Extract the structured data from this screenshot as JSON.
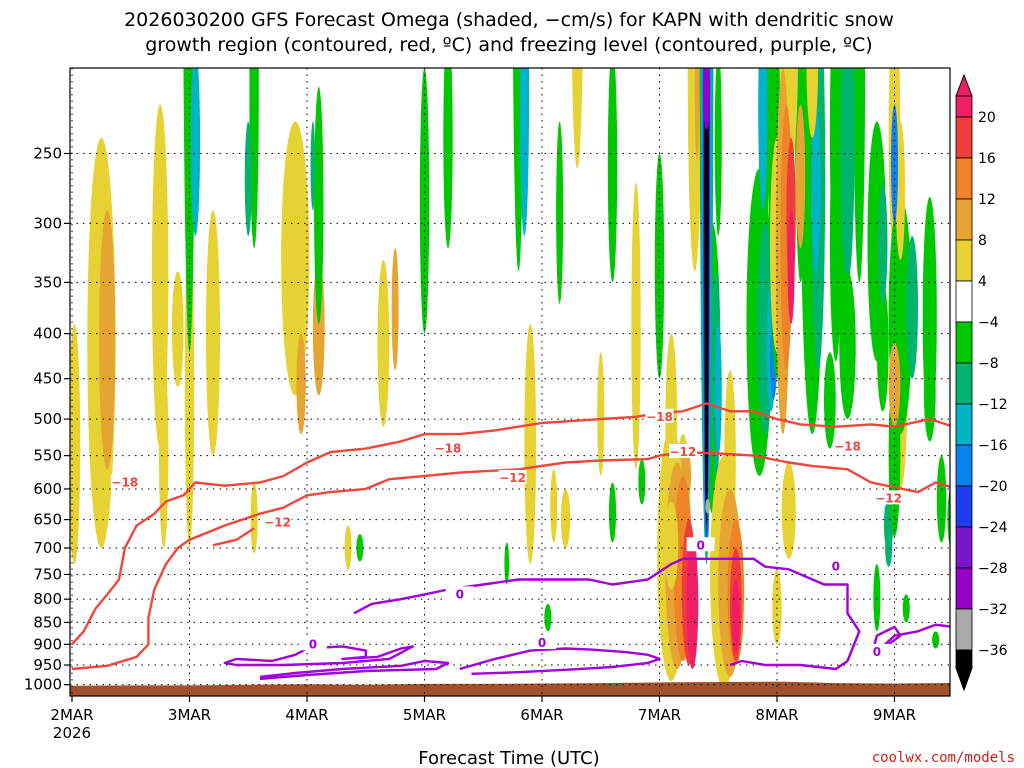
{
  "chart_data": {
    "type": "heatmap",
    "title_line1": "2026030200 GFS Forecast Omega (shaded, −cm/s) for KAPN with dendritic snow",
    "title_line2": "growth region (contoured, red, ºC) and freezing level (contoured, purple, ºC)",
    "xlabel": "Forecast Time (UTC)",
    "credit": "coolwx.com/models",
    "x_ticks": [
      "2MAR",
      "3MAR",
      "4MAR",
      "5MAR",
      "6MAR",
      "7MAR",
      "8MAR",
      "9MAR"
    ],
    "x_year": "2026",
    "xlim_days": [
      0,
      7.5
    ],
    "y_ticks": [
      250,
      300,
      350,
      400,
      450,
      500,
      550,
      600,
      650,
      700,
      750,
      800,
      850,
      900,
      950,
      1000
    ],
    "ylim_hpa": [
      200,
      1030
    ],
    "colorbar": {
      "labels": [
        "20",
        "16",
        "12",
        "8",
        "4",
        "−4",
        "−8",
        "−12",
        "−16",
        "−20",
        "−24",
        "−28",
        "−32",
        "−36"
      ],
      "colors": [
        "#f01e64",
        "#f03c3c",
        "#f08228",
        "#e6a532",
        "#e6d232",
        "#ffffff",
        "#00c800",
        "#00b46e",
        "#00b4c8",
        "#0a82f0",
        "#1e3cf0",
        "#7a14c8",
        "#9600c8",
        "#aaaaaa",
        "#000000"
      ]
    },
    "contours": {
      "red": [
        {
          "label": "−18",
          "label_positions": [
            [
              0.45,
              590
            ],
            [
              3.2,
              540
            ],
            [
              5.0,
              497
            ],
            [
              6.6,
              537
            ]
          ]
        },
        {
          "label": "−12",
          "label_positions": [
            [
              1.75,
              655
            ],
            [
              3.75,
              583
            ],
            [
              5.2,
              545
            ],
            [
              6.95,
              615
            ]
          ]
        }
      ],
      "purple": [
        {
          "label": "0",
          "label_positions": [
            [
              2.05,
              900
            ],
            [
              3.3,
              790
            ],
            [
              4.0,
              897
            ],
            [
              5.35,
              695
            ],
            [
              6.5,
              735
            ],
            [
              6.85,
              918
            ]
          ]
        }
      ]
    },
    "colors": {
      "dendritic_contour": "#f0463c",
      "freezing_contour": "#a000dc",
      "terrain": "#a0522d"
    }
  }
}
